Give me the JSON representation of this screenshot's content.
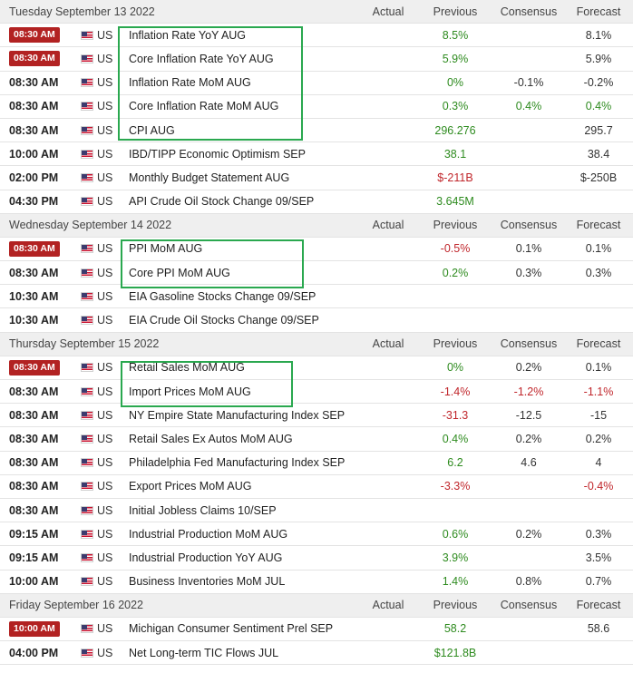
{
  "columns": {
    "actual": "Actual",
    "previous": "Previous",
    "consensus": "Consensus",
    "forecast": "Forecast"
  },
  "days": [
    {
      "date": "Tuesday September 13 2022",
      "events": [
        {
          "time": "08:30 AM",
          "high": true,
          "country": "US",
          "event": "Inflation Rate YoY AUG",
          "actual": "",
          "previous": "8.5%",
          "previous_color": "pos",
          "consensus": "",
          "consensus_color": "neu",
          "forecast": "8.1%",
          "forecast_color": "neu"
        },
        {
          "time": "08:30 AM",
          "high": true,
          "country": "US",
          "event": "Core Inflation Rate YoY AUG",
          "actual": "",
          "previous": "5.9%",
          "previous_color": "pos",
          "consensus": "",
          "consensus_color": "neu",
          "forecast": "5.9%",
          "forecast_color": "neu"
        },
        {
          "time": "08:30 AM",
          "high": false,
          "country": "US",
          "event": "Inflation Rate MoM AUG",
          "actual": "",
          "previous": "0%",
          "previous_color": "pos",
          "consensus": "-0.1%",
          "consensus_color": "neu",
          "forecast": "-0.2%",
          "forecast_color": "neu"
        },
        {
          "time": "08:30 AM",
          "high": false,
          "country": "US",
          "event": "Core Inflation Rate MoM AUG",
          "actual": "",
          "previous": "0.3%",
          "previous_color": "pos",
          "consensus": "0.4%",
          "consensus_color": "pos",
          "forecast": "0.4%",
          "forecast_color": "pos"
        },
        {
          "time": "08:30 AM",
          "high": false,
          "country": "US",
          "event": "CPI AUG",
          "actual": "",
          "previous": "296.276",
          "previous_color": "pos",
          "consensus": "",
          "consensus_color": "neu",
          "forecast": "295.7",
          "forecast_color": "neu"
        },
        {
          "time": "10:00 AM",
          "high": false,
          "country": "US",
          "event": "IBD/TIPP Economic Optimism SEP",
          "actual": "",
          "previous": "38.1",
          "previous_color": "pos",
          "consensus": "",
          "consensus_color": "neu",
          "forecast": "38.4",
          "forecast_color": "neu"
        },
        {
          "time": "02:00 PM",
          "high": false,
          "country": "US",
          "event": "Monthly Budget Statement AUG",
          "actual": "",
          "previous": "$-211B",
          "previous_color": "neg",
          "consensus": "",
          "consensus_color": "neu",
          "forecast": "$-250B",
          "forecast_color": "neu"
        },
        {
          "time": "04:30 PM",
          "high": false,
          "country": "US",
          "event": "API Crude Oil Stock Change 09/SEP",
          "actual": "",
          "previous": "3.645M",
          "previous_color": "pos",
          "consensus": "",
          "consensus_color": "neu",
          "forecast": "",
          "forecast_color": "neu"
        }
      ]
    },
    {
      "date": "Wednesday September 14 2022",
      "events": [
        {
          "time": "08:30 AM",
          "high": true,
          "country": "US",
          "event": "PPI MoM AUG",
          "actual": "",
          "previous": "-0.5%",
          "previous_color": "neg",
          "consensus": "0.1%",
          "consensus_color": "neu",
          "forecast": "0.1%",
          "forecast_color": "neu"
        },
        {
          "time": "08:30 AM",
          "high": false,
          "country": "US",
          "event": "Core PPI MoM AUG",
          "actual": "",
          "previous": "0.2%",
          "previous_color": "pos",
          "consensus": "0.3%",
          "consensus_color": "neu",
          "forecast": "0.3%",
          "forecast_color": "neu"
        },
        {
          "time": "10:30 AM",
          "high": false,
          "country": "US",
          "event": "EIA Gasoline Stocks Change 09/SEP",
          "actual": "",
          "previous": "",
          "previous_color": "neu",
          "consensus": "",
          "consensus_color": "neu",
          "forecast": "",
          "forecast_color": "neu"
        },
        {
          "time": "10:30 AM",
          "high": false,
          "country": "US",
          "event": "EIA Crude Oil Stocks Change 09/SEP",
          "actual": "",
          "previous": "",
          "previous_color": "neu",
          "consensus": "",
          "consensus_color": "neu",
          "forecast": "",
          "forecast_color": "neu"
        }
      ]
    },
    {
      "date": "Thursday September 15 2022",
      "events": [
        {
          "time": "08:30 AM",
          "high": true,
          "country": "US",
          "event": "Retail Sales MoM AUG",
          "actual": "",
          "previous": "0%",
          "previous_color": "pos",
          "consensus": "0.2%",
          "consensus_color": "neu",
          "forecast": "0.1%",
          "forecast_color": "neu"
        },
        {
          "time": "08:30 AM",
          "high": false,
          "country": "US",
          "event": "Import Prices MoM AUG",
          "actual": "",
          "previous": "-1.4%",
          "previous_color": "neg",
          "consensus": "-1.2%",
          "consensus_color": "neg",
          "forecast": "-1.1%",
          "forecast_color": "neg"
        },
        {
          "time": "08:30 AM",
          "high": false,
          "country": "US",
          "event": "NY Empire State Manufacturing Index SEP",
          "actual": "",
          "previous": "-31.3",
          "previous_color": "neg",
          "consensus": "-12.5",
          "consensus_color": "neu",
          "forecast": "-15",
          "forecast_color": "neu"
        },
        {
          "time": "08:30 AM",
          "high": false,
          "country": "US",
          "event": "Retail Sales Ex Autos MoM AUG",
          "actual": "",
          "previous": "0.4%",
          "previous_color": "pos",
          "consensus": "0.2%",
          "consensus_color": "neu",
          "forecast": "0.2%",
          "forecast_color": "neu"
        },
        {
          "time": "08:30 AM",
          "high": false,
          "country": "US",
          "event": "Philadelphia Fed Manufacturing Index SEP",
          "actual": "",
          "previous": "6.2",
          "previous_color": "pos",
          "consensus": "4.6",
          "consensus_color": "neu",
          "forecast": "4",
          "forecast_color": "neu"
        },
        {
          "time": "08:30 AM",
          "high": false,
          "country": "US",
          "event": "Export Prices MoM AUG",
          "actual": "",
          "previous": "-3.3%",
          "previous_color": "neg",
          "consensus": "",
          "consensus_color": "neu",
          "forecast": "-0.4%",
          "forecast_color": "neg"
        },
        {
          "time": "08:30 AM",
          "high": false,
          "country": "US",
          "event": "Initial Jobless Claims 10/SEP",
          "actual": "",
          "previous": "",
          "previous_color": "neu",
          "consensus": "",
          "consensus_color": "neu",
          "forecast": "",
          "forecast_color": "neu"
        },
        {
          "time": "09:15 AM",
          "high": false,
          "country": "US",
          "event": "Industrial Production MoM AUG",
          "actual": "",
          "previous": "0.6%",
          "previous_color": "pos",
          "consensus": "0.2%",
          "consensus_color": "neu",
          "forecast": "0.3%",
          "forecast_color": "neu"
        },
        {
          "time": "09:15 AM",
          "high": false,
          "country": "US",
          "event": "Industrial Production YoY AUG",
          "actual": "",
          "previous": "3.9%",
          "previous_color": "pos",
          "consensus": "",
          "consensus_color": "neu",
          "forecast": "3.5%",
          "forecast_color": "neu"
        },
        {
          "time": "10:00 AM",
          "high": false,
          "country": "US",
          "event": "Business Inventories MoM JUL",
          "actual": "",
          "previous": "1.4%",
          "previous_color": "pos",
          "consensus": "0.8%",
          "consensus_color": "neu",
          "forecast": "0.7%",
          "forecast_color": "neu"
        }
      ]
    },
    {
      "date": "Friday September 16 2022",
      "events": [
        {
          "time": "10:00 AM",
          "high": true,
          "country": "US",
          "event": "Michigan Consumer Sentiment Prel SEP",
          "actual": "",
          "previous": "58.2",
          "previous_color": "pos",
          "consensus": "",
          "consensus_color": "neu",
          "forecast": "58.6",
          "forecast_color": "neu"
        },
        {
          "time": "04:00 PM",
          "high": false,
          "country": "US",
          "event": "Net Long-term TIC Flows JUL",
          "actual": "",
          "previous": "$121.8B",
          "previous_color": "pos",
          "consensus": "",
          "consensus_color": "neu",
          "forecast": "",
          "forecast_color": "neu"
        }
      ]
    }
  ],
  "highlight_color": "#2aa84f"
}
